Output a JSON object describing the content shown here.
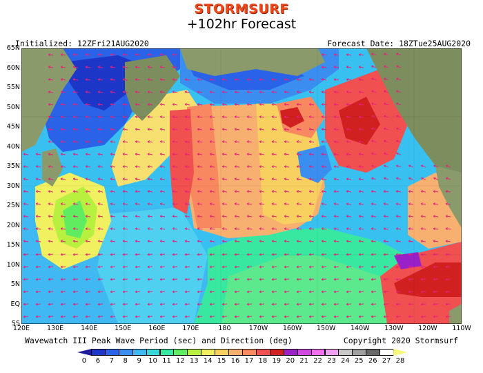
{
  "header": {
    "logo": "STORMSURF",
    "title": "+102hr Forecast",
    "initialized": "Initialized: 12ZFri21AUG2020",
    "forecast_date": "Forecast Date: 18ZTue25AUG2020"
  },
  "map": {
    "lat_labels": [
      "65N",
      "60N",
      "55N",
      "50N",
      "45N",
      "40N",
      "35N",
      "30N",
      "25N",
      "20N",
      "15N",
      "10N",
      "5N",
      "EQ",
      "5S"
    ],
    "lon_labels": [
      "120E",
      "130E",
      "140E",
      "150E",
      "160E",
      "170E",
      "180",
      "170W",
      "160W",
      "150W",
      "140W",
      "130W",
      "120W",
      "110W"
    ],
    "colors": {
      "land": "#8a9a6a",
      "outline": "#000000",
      "arrow": "#e8207a"
    },
    "arrow_direction": "mostly westward (waves travelling east to west), southerly near coast"
  },
  "footer": {
    "caption": "Wavewatch III Peak Wave Period (sec) and Direction (deg)",
    "copyright": "Copyright 2020 Stormsurf"
  },
  "legend": {
    "values": [
      "0",
      "6",
      "7",
      "8",
      "9",
      "10",
      "11",
      "12",
      "13",
      "14",
      "15",
      "16",
      "17",
      "18",
      "19",
      "20",
      "21",
      "22",
      "23",
      "24",
      "25",
      "26",
      "27",
      "28"
    ],
    "colors": [
      "#1c1c9c",
      "#1c36c8",
      "#2a62e8",
      "#3a8ef0",
      "#40b8f2",
      "#38d8d8",
      "#38e8a0",
      "#60ec60",
      "#b8f040",
      "#f0f060",
      "#f8d060",
      "#f8b070",
      "#f88860",
      "#f05050",
      "#d02020",
      "#9a20c8",
      "#d048e0",
      "#f070f0",
      "#f0a0f0",
      "#c8c8c8",
      "#a0a0a0",
      "#686868",
      "#ffffff",
      "#f8f878"
    ]
  }
}
